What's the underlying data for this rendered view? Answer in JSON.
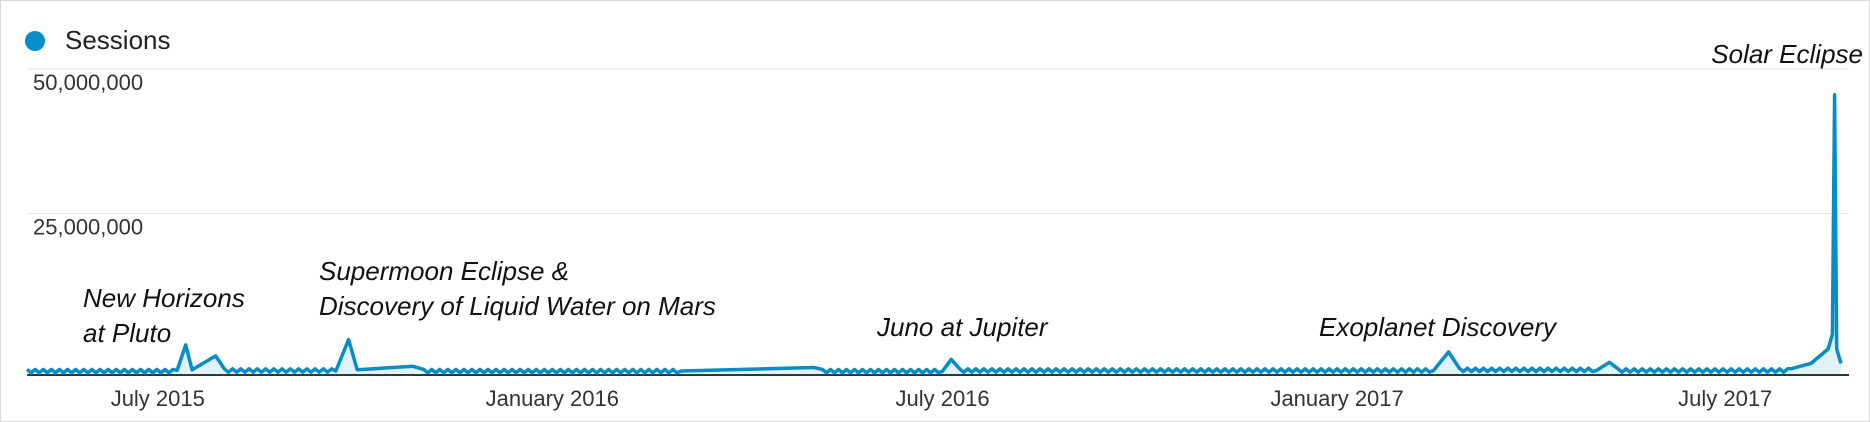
{
  "legend": {
    "label": "Sessions",
    "color": "#058dc7"
  },
  "chart_data": {
    "type": "area",
    "title": "",
    "xlabel": "",
    "ylabel": "",
    "ylim": [
      0,
      50000000
    ],
    "x_range": [
      "2015-05-01",
      "2017-08-24"
    ],
    "grid": true,
    "legend_position": "top-left",
    "y_ticks": [
      {
        "value": 25000000,
        "label": "25,000,000"
      },
      {
        "value": 50000000,
        "label": "50,000,000"
      }
    ],
    "x_ticks": [
      {
        "date": "2015-07-01",
        "label": "July 2015"
      },
      {
        "date": "2016-01-01",
        "label": "January 2016"
      },
      {
        "date": "2016-07-01",
        "label": "July 2016"
      },
      {
        "date": "2017-01-01",
        "label": "January 2017"
      },
      {
        "date": "2017-07-01",
        "label": "July 2017"
      }
    ],
    "series": [
      {
        "name": "Sessions",
        "color": "#058dc7",
        "points": [
          [
            "2015-05-01",
            700000
          ],
          [
            "2015-07-10",
            800000
          ],
          [
            "2015-07-14",
            5200000
          ],
          [
            "2015-07-17",
            900000
          ],
          [
            "2015-07-28",
            3300000
          ],
          [
            "2015-08-01",
            800000
          ],
          [
            "2015-09-22",
            700000
          ],
          [
            "2015-09-28",
            6100000
          ],
          [
            "2015-10-02",
            900000
          ],
          [
            "2015-10-28",
            1500000
          ],
          [
            "2015-11-02",
            700000
          ],
          [
            "2016-03-01",
            700000
          ],
          [
            "2016-05-02",
            1300000
          ],
          [
            "2016-05-06",
            700000
          ],
          [
            "2016-07-01",
            700000
          ],
          [
            "2016-07-05",
            2700000
          ],
          [
            "2016-07-09",
            800000
          ],
          [
            "2017-02-15",
            800000
          ],
          [
            "2017-02-22",
            4000000
          ],
          [
            "2017-02-27",
            900000
          ],
          [
            "2017-05-02",
            800000
          ],
          [
            "2017-05-08",
            2200000
          ],
          [
            "2017-05-12",
            800000
          ],
          [
            "2017-08-01",
            1100000
          ],
          [
            "2017-08-10",
            2000000
          ],
          [
            "2017-08-18",
            4500000
          ],
          [
            "2017-08-20",
            7000000
          ],
          [
            "2017-08-21",
            48500000
          ],
          [
            "2017-08-22",
            4500000
          ],
          [
            "2017-08-24",
            2000000
          ]
        ]
      }
    ],
    "annotations": [
      {
        "lines": [
          "New Horizons",
          "at Pluto"
        ]
      },
      {
        "lines": [
          "Supermoon Eclipse &",
          "Discovery of Liquid Water on Mars"
        ]
      },
      {
        "lines": [
          "Juno at Jupiter"
        ]
      },
      {
        "lines": [
          "Exoplanet Discovery"
        ]
      },
      {
        "lines": [
          "Solar Eclipse"
        ]
      }
    ]
  }
}
